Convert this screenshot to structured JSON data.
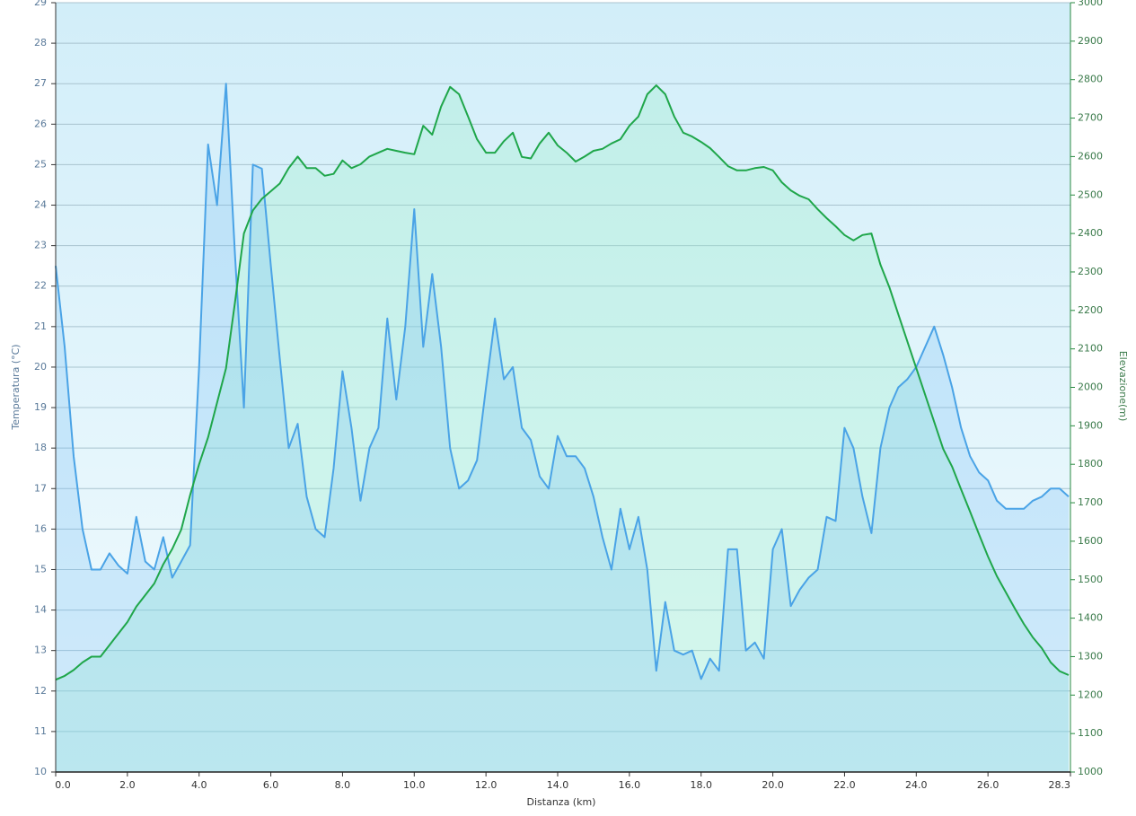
{
  "chart_data": {
    "type": "area",
    "xlabel": "Distanza  (km)",
    "ylabel": "Temperatura (°C)",
    "y2label": "Elevazione(m)",
    "x": [
      0,
      0.25,
      0.5,
      0.75,
      1,
      1.25,
      1.5,
      1.75,
      2,
      2.25,
      2.5,
      2.75,
      3,
      3.25,
      3.5,
      3.75,
      4,
      4.25,
      4.5,
      4.75,
      5,
      5.25,
      5.5,
      5.75,
      6,
      6.25,
      6.5,
      6.75,
      7,
      7.25,
      7.5,
      7.75,
      8,
      8.25,
      8.5,
      8.75,
      9,
      9.25,
      9.5,
      9.75,
      10,
      10.25,
      10.5,
      10.75,
      11,
      11.25,
      11.5,
      11.75,
      12,
      12.25,
      12.5,
      12.75,
      13,
      13.25,
      13.5,
      13.75,
      14,
      14.25,
      14.5,
      14.75,
      15,
      15.25,
      15.5,
      15.75,
      16,
      16.25,
      16.5,
      16.75,
      17,
      17.25,
      17.5,
      17.75,
      18,
      18.25,
      18.5,
      18.75,
      19,
      19.25,
      19.5,
      19.75,
      20,
      20.25,
      20.5,
      20.75,
      21,
      21.25,
      21.5,
      21.75,
      22,
      22.25,
      22.5,
      22.75,
      23,
      23.25,
      23.5,
      23.75,
      24,
      24.25,
      24.5,
      24.75,
      25,
      25.25,
      25.5,
      25.75,
      26,
      26.25,
      26.5,
      26.75,
      27,
      27.25,
      27.5,
      27.75,
      28,
      28.25
    ],
    "series": [
      {
        "color": "#4aa3e6",
        "axis": "y",
        "values": [
          22.5,
          20.5,
          17.8,
          16.0,
          15.0,
          15.0,
          15.4,
          15.1,
          14.9,
          16.3,
          15.2,
          15.0,
          15.8,
          14.8,
          15.2,
          15.6,
          20.0,
          25.5,
          24.0,
          27.0,
          22.8,
          19.0,
          25.0,
          24.9,
          22.5,
          20.2,
          18.0,
          18.6,
          16.8,
          16.0,
          15.8,
          17.5,
          19.9,
          18.5,
          16.7,
          18.0,
          18.5,
          21.2,
          19.2,
          21.0,
          23.9,
          20.5,
          22.3,
          20.5,
          18.0,
          17.0,
          17.2,
          17.7,
          19.5,
          21.2,
          19.7,
          20.0,
          18.5,
          18.2,
          17.3,
          17.0,
          18.3,
          17.8,
          17.8,
          17.5,
          16.8,
          15.8,
          15.0,
          16.5,
          15.5,
          16.3,
          15.0,
          12.5,
          14.2,
          13.0,
          12.9,
          13.0,
          12.3,
          12.8,
          12.5,
          15.5,
          15.5,
          13.0,
          13.2,
          12.8,
          15.5,
          16.0,
          14.1,
          14.5,
          14.8,
          15.0,
          16.3,
          16.2,
          18.5,
          18.0,
          16.8,
          15.9,
          18.0,
          19.0,
          19.5,
          19.7,
          20.0,
          20.5,
          21.0,
          20.3,
          19.5,
          18.5,
          17.8,
          17.4,
          17.2,
          16.7,
          16.5,
          16.5,
          16.5,
          16.7,
          16.8,
          17.0,
          17.0,
          16.8
        ]
      },
      {
        "color": "#1fa64a",
        "axis": "y2",
        "values": [
          1240,
          1250,
          1265,
          1285,
          1300,
          1300,
          1330,
          1360,
          1390,
          1430,
          1460,
          1490,
          1540,
          1580,
          1630,
          1720,
          1800,
          1870,
          1960,
          2050,
          2220,
          2400,
          2460,
          2490,
          2510,
          2530,
          2570,
          2600,
          2570,
          2570,
          2550,
          2555,
          2590,
          2570,
          2580,
          2600,
          2610,
          2620,
          2615,
          2610,
          2606,
          2680,
          2657,
          2730,
          2781,
          2762,
          2704,
          2645,
          2610,
          2610,
          2640,
          2662,
          2599,
          2595,
          2634,
          2662,
          2629,
          2610,
          2587,
          2600,
          2615,
          2620,
          2634,
          2645,
          2680,
          2704,
          2762,
          2785,
          2762,
          2704,
          2662,
          2652,
          2638,
          2622,
          2599,
          2575,
          2564,
          2564,
          2570,
          2573,
          2564,
          2533,
          2512,
          2498,
          2489,
          2463,
          2440,
          2419,
          2396,
          2382,
          2396,
          2400,
          2319,
          2260,
          2190,
          2120,
          2050,
          1980,
          1910,
          1840,
          1794,
          1735,
          1677,
          1618,
          1560,
          1509,
          1467,
          1425,
          1385,
          1350,
          1322,
          1285,
          1262,
          1252
        ]
      }
    ],
    "xlim": [
      0,
      28.3
    ],
    "xticks": [
      {
        "value": 0,
        "label": "0.0"
      },
      {
        "value": 2,
        "label": "2.0"
      },
      {
        "value": 4,
        "label": "4.0"
      },
      {
        "value": 6,
        "label": "6.0"
      },
      {
        "value": 8,
        "label": "8.0"
      },
      {
        "value": 10,
        "label": "10.0"
      },
      {
        "value": 12,
        "label": "12.0"
      },
      {
        "value": 14,
        "label": "14.0"
      },
      {
        "value": 16,
        "label": "16.0"
      },
      {
        "value": 18,
        "label": "18.0"
      },
      {
        "value": 20,
        "label": "20.0"
      },
      {
        "value": 22,
        "label": "22.0"
      },
      {
        "value": 24,
        "label": "24.0"
      },
      {
        "value": 26,
        "label": "26.0"
      },
      28.3
    ],
    "ylim": [
      10,
      29
    ],
    "yticks": [
      10,
      11,
      12,
      13,
      14,
      15,
      16,
      17,
      18,
      19,
      20,
      21,
      22,
      23,
      24,
      25,
      26,
      27,
      28,
      29
    ],
    "y2lim": [
      1000,
      3000
    ],
    "y2ticks": [
      1000,
      1100,
      1200,
      1300,
      1400,
      1500,
      1600,
      1700,
      1800,
      1900,
      2000,
      2100,
      2200,
      2300,
      2400,
      2500,
      2600,
      2700,
      2800,
      2900,
      3000
    ],
    "grid": true
  }
}
